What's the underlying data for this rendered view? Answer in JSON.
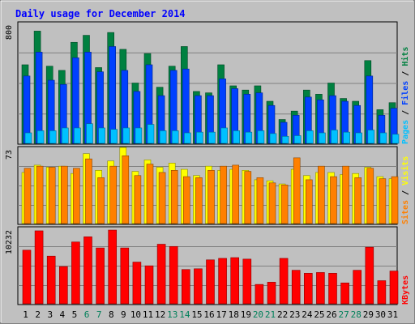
{
  "chart_data": {
    "type": "bar",
    "title": "Daily usage for December 2014",
    "categories": [
      "1",
      "2",
      "3",
      "4",
      "5",
      "6",
      "7",
      "8",
      "9",
      "10",
      "11",
      "12",
      "13",
      "14",
      "15",
      "16",
      "17",
      "18",
      "19",
      "20",
      "21",
      "22",
      "23",
      "24",
      "25",
      "26",
      "27",
      "28",
      "29",
      "30",
      "31"
    ],
    "weekend_days": [
      "6",
      "7",
      "13",
      "14",
      "20",
      "21",
      "27",
      "28"
    ],
    "panels": [
      {
        "name": "hits",
        "ymax_label": "800",
        "ylim": [
          0,
          860
        ],
        "axis_labels": [
          "Pages",
          "Files",
          "Hits"
        ],
        "series": [
          {
            "name": "Hits",
            "color": "#008040",
            "values": [
              560,
              800,
              550,
              520,
              720,
              770,
              540,
              790,
              670,
              430,
              640,
              400,
              550,
              690,
              370,
              360,
              560,
              410,
              380,
              410,
              300,
              170,
              230,
              380,
              350,
              430,
              320,
              300,
              590,
              240,
              290
            ]
          },
          {
            "name": "Files",
            "color": "#0040ff",
            "values": [
              480,
              650,
              450,
              420,
              610,
              650,
              510,
              690,
              520,
              370,
              560,
              340,
              520,
              530,
              340,
              340,
              460,
              390,
              350,
              360,
              270,
              150,
              200,
              330,
              310,
              340,
              300,
              270,
              480,
              200,
              250
            ]
          },
          {
            "name": "Pages",
            "color": "#00c0ff",
            "values": [
              75,
              90,
              90,
              110,
              110,
              140,
              110,
              100,
              110,
              110,
              135,
              90,
              90,
              75,
              80,
              80,
              110,
              90,
              80,
              90,
              70,
              50,
              55,
              90,
              75,
              95,
              80,
              75,
              95,
              75,
              65
            ]
          }
        ]
      },
      {
        "name": "visits",
        "ymax_label": "73",
        "ylim": [
          0,
          73
        ],
        "axis_labels": [
          "Sites",
          "Visits"
        ],
        "series": [
          {
            "name": "Visits",
            "color": "#ffff00",
            "values": [
              49,
              56,
              54,
              55,
              48,
              67,
              51,
              60,
              73,
              50,
              61,
              54,
              58,
              52,
              46,
              55,
              51,
              52,
              51,
              42,
              41,
              38,
              52,
              46,
              49,
              49,
              47,
              48,
              54,
              45,
              43
            ]
          },
          {
            "name": "Sites",
            "color": "#ff8000",
            "values": [
              53,
              55,
              54,
              55,
              53,
              62,
              44,
              55,
              65,
              46,
              57,
              49,
              51,
              45,
              44,
              51,
              55,
              56,
              50,
              44,
              39,
              37,
              63,
              42,
              55,
              45,
              55,
              44,
              53,
              43,
              45
            ]
          }
        ]
      },
      {
        "name": "kbytes",
        "ymax_label": "10232",
        "ylim": [
          0,
          10232
        ],
        "axis_labels": [
          "KBytes"
        ],
        "series": [
          {
            "name": "KBytes",
            "color": "#ff0000",
            "values": [
              7200,
              9800,
              6400,
              5000,
              8300,
              9000,
              7500,
              9900,
              7500,
              5600,
              5100,
              8000,
              7700,
              4600,
              4700,
              5900,
              6100,
              6200,
              6000,
              2600,
              2900,
              6100,
              4500,
              4100,
              4200,
              4100,
              2800,
              4500,
              7600,
              3100,
              4400
            ]
          }
        ]
      }
    ]
  }
}
